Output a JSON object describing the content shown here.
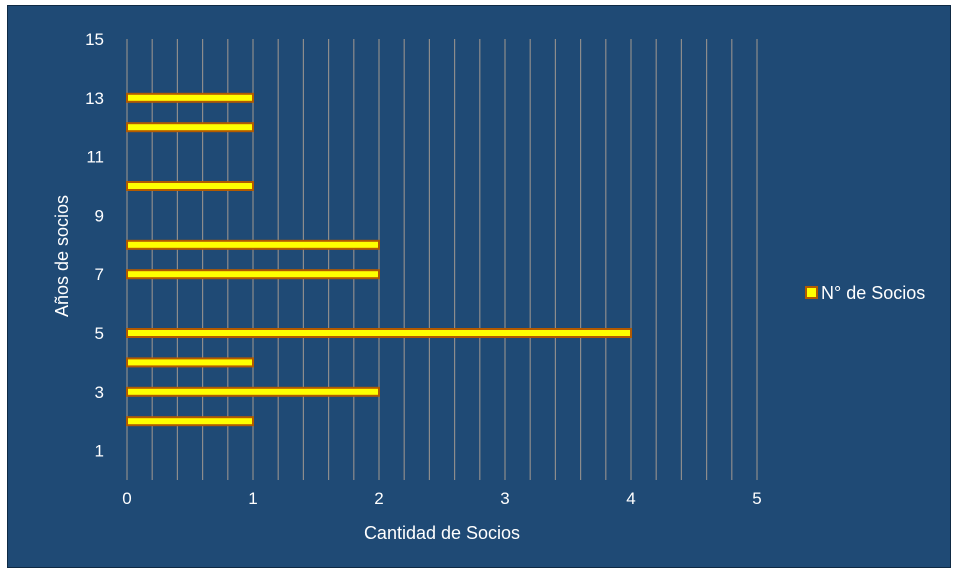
{
  "chart_data": {
    "type": "bar",
    "orientation": "horizontal",
    "xlabel": "Cantidad de Socios",
    "ylabel": "Años de socios",
    "xlim": [
      0,
      5
    ],
    "ylim": [
      0,
      15
    ],
    "x_ticks": [
      "0",
      "1",
      "2",
      "3",
      "4",
      "5"
    ],
    "y_ticks": [
      "1",
      "3",
      "5",
      "7",
      "9",
      "11",
      "13",
      "15"
    ],
    "grid": "vertical",
    "legend_position": "right",
    "series": [
      {
        "name": "N° de Socios",
        "points": [
          {
            "y": 2,
            "x": 1
          },
          {
            "y": 3,
            "x": 2
          },
          {
            "y": 4,
            "x": 1
          },
          {
            "y": 5,
            "x": 4
          },
          {
            "y": 7,
            "x": 2
          },
          {
            "y": 8,
            "x": 2
          },
          {
            "y": 10,
            "x": 1
          },
          {
            "y": 12,
            "x": 1
          },
          {
            "y": 13,
            "x": 1
          }
        ]
      }
    ],
    "colors": {
      "background": "#1f4a75",
      "bar_fill": "#ffff00",
      "bar_border": "#b35a00",
      "gridline": "#8c8c8c",
      "text": "#ffffff"
    }
  }
}
